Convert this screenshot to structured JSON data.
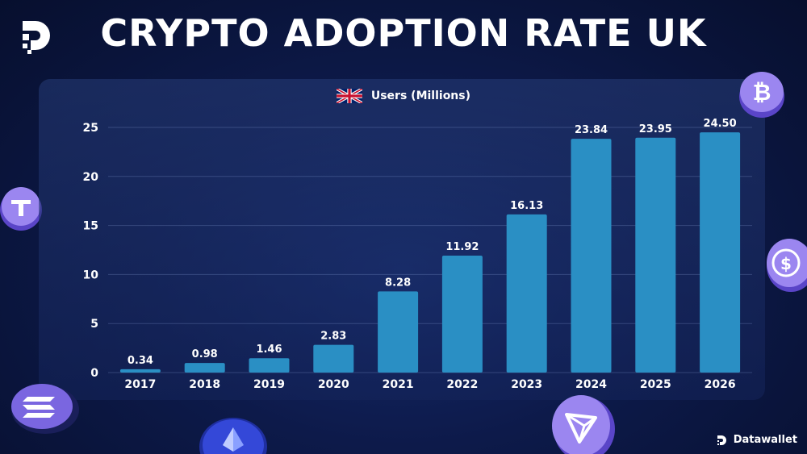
{
  "title": "CRYPTO ADOPTION RATE UK",
  "brand": "Datawallet",
  "icons": {
    "logo": "datawallet-d-logo",
    "flag": "uk-flag-icon",
    "coins": [
      "bitcoin-coin-icon",
      "tether-coin-icon",
      "usdc-coin-icon",
      "solana-coin-icon",
      "ethereum-coin-icon",
      "tron-coin-icon"
    ]
  },
  "colors": {
    "bar": "#2a8fc4",
    "background": "#0d1a4a",
    "coin": "#8f7be8"
  },
  "chart_data": {
    "type": "bar",
    "categories": [
      "2017",
      "2018",
      "2019",
      "2020",
      "2021",
      "2022",
      "2023",
      "2024",
      "2025",
      "2026"
    ],
    "series": [
      {
        "name": "Users (Millions)",
        "values": [
          0.34,
          0.98,
          1.46,
          2.83,
          8.28,
          11.92,
          16.13,
          23.84,
          23.95,
          24.5
        ]
      }
    ],
    "value_labels": [
      "0.34",
      "0.98",
      "1.46",
      "2.83",
      "8.28",
      "11.92",
      "16.13",
      "23.84",
      "23.95",
      "24.50"
    ],
    "yticks": [
      "0",
      "5",
      "10",
      "15",
      "20",
      "25"
    ],
    "ylim": [
      0,
      25
    ],
    "grid": true,
    "legend": "top-center",
    "xlabel": "",
    "ylabel": ""
  }
}
